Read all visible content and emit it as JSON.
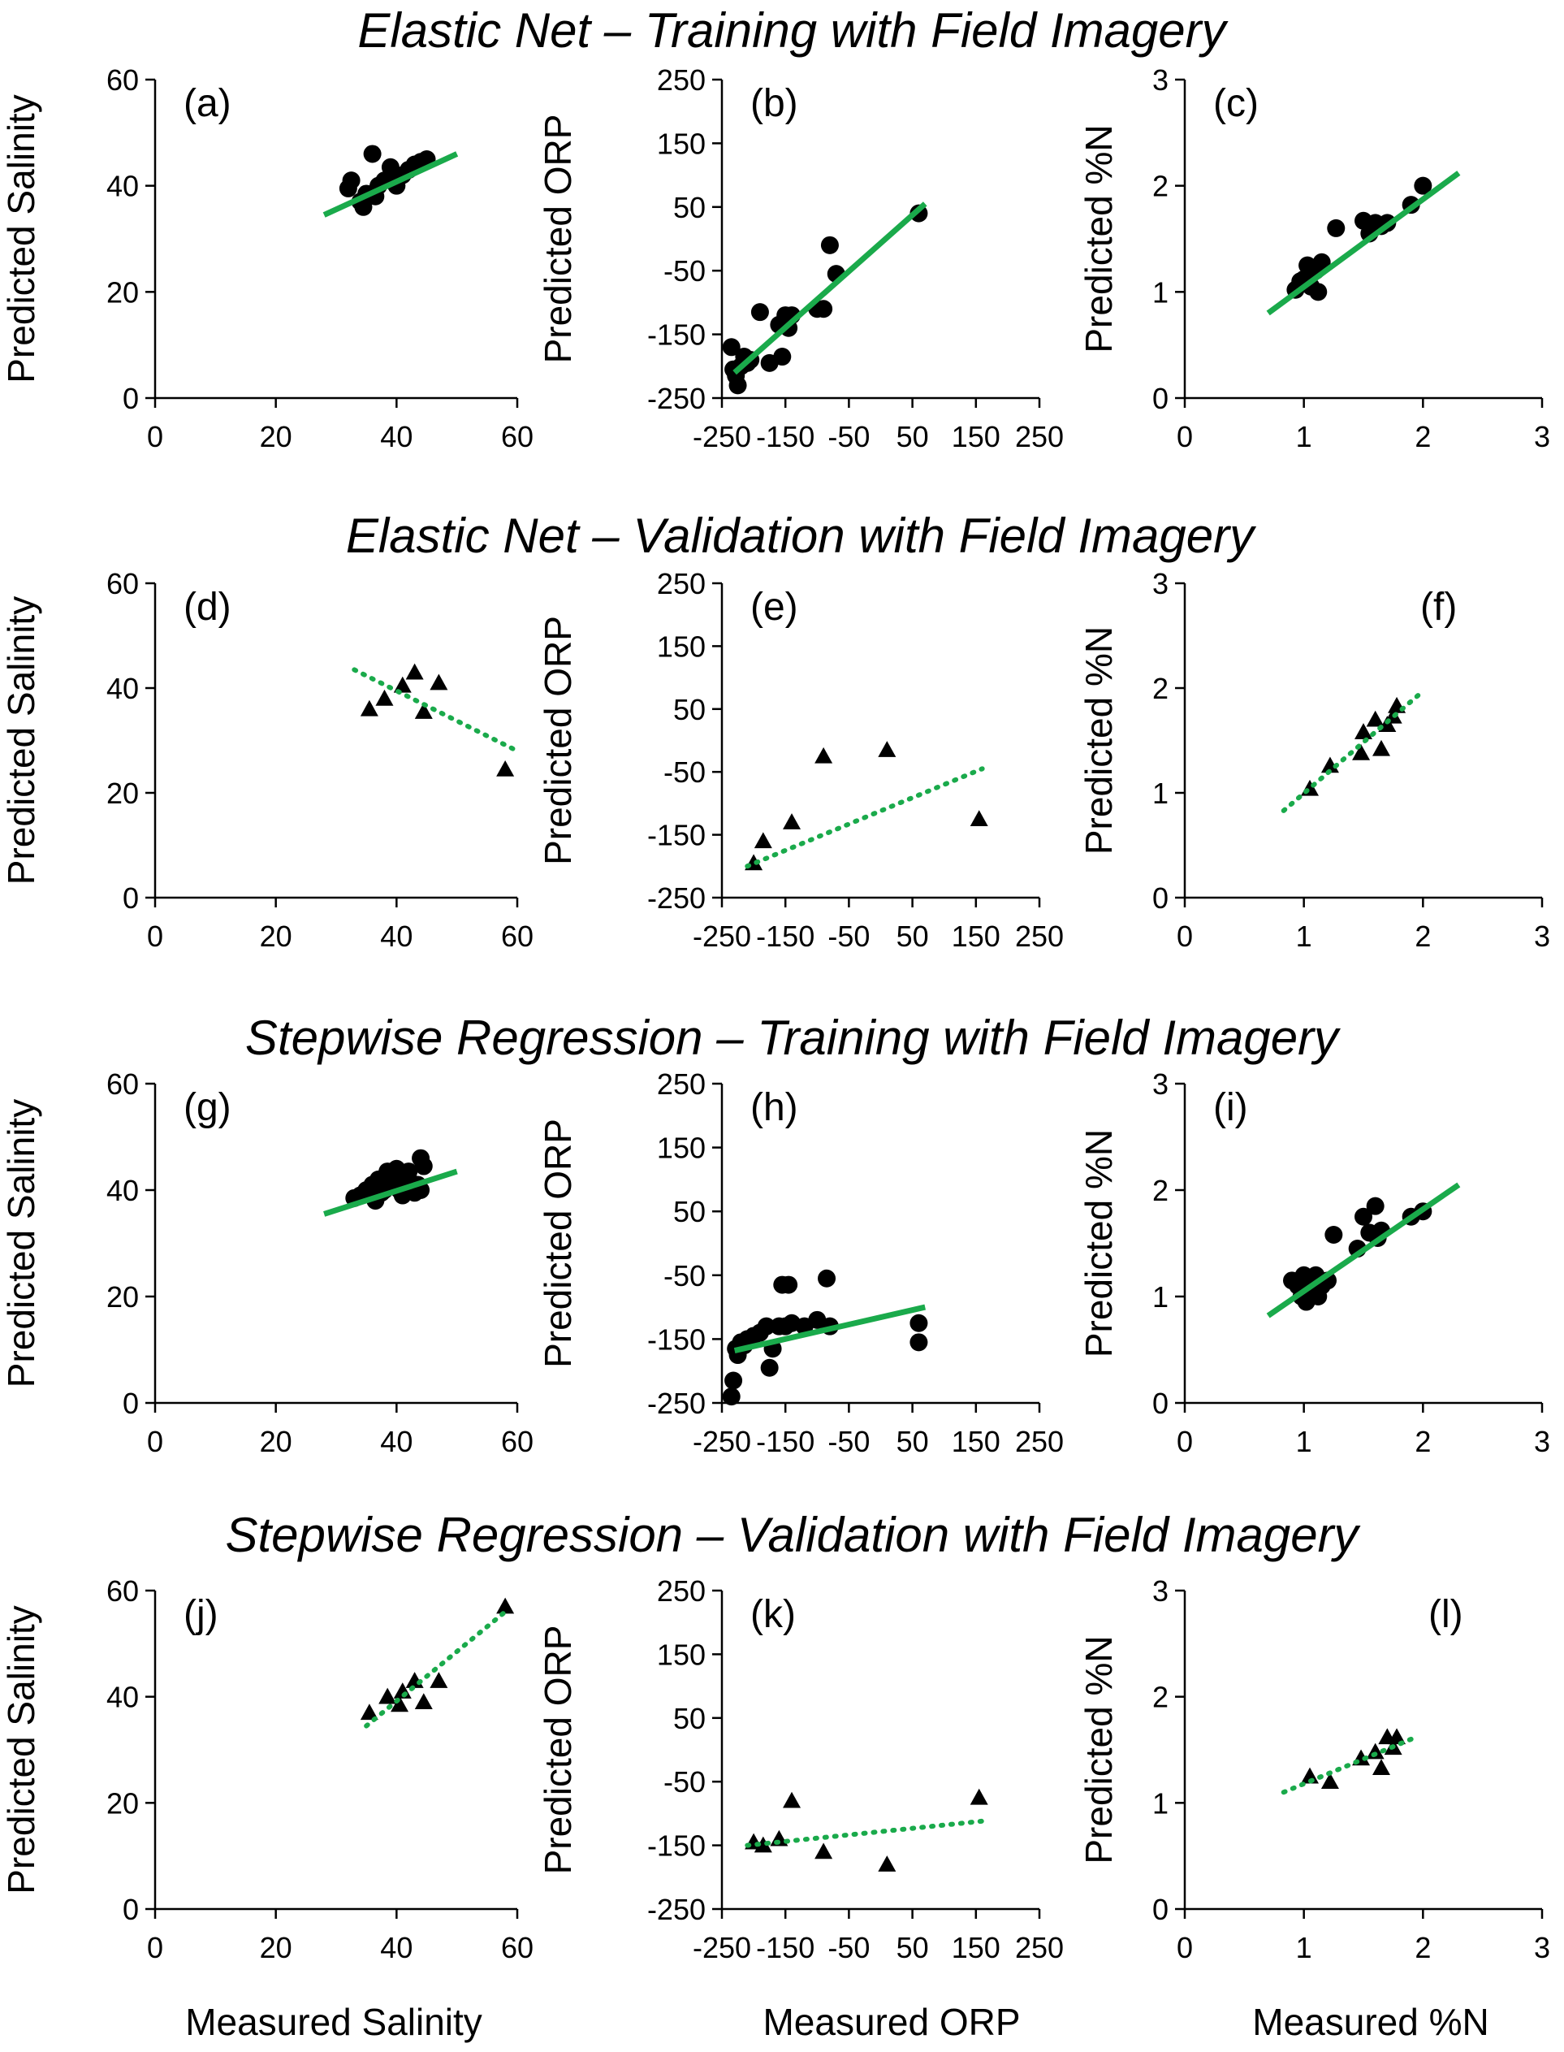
{
  "colors": {
    "fit_line": "#1aaa4b",
    "marker": "#000000",
    "axis": "#000000",
    "background": "#ffffff"
  },
  "chart_data": {
    "type": "scatter",
    "row_titles": [
      "Elastic Net – Training with Field Imagery",
      "Elastic Net – Validation with Field Imagery",
      "Stepwise Regression – Training with Field Imagery",
      "Stepwise Regression – Validation with Field Imagery"
    ],
    "xlabels": [
      "Measured Salinity",
      "Measured ORP",
      "Measured %N"
    ],
    "panels": [
      {
        "label": "(a)",
        "row": 0,
        "col": 0,
        "ylabel": "Predicted Salinity",
        "marker": "circle",
        "xlim": [
          0,
          60
        ],
        "ylim": [
          0,
          60
        ],
        "xticks": [
          0,
          20,
          40,
          60
        ],
        "yticks": [
          0,
          20,
          40,
          60
        ],
        "fit": {
          "style": "solid",
          "x": [
            28,
            50
          ],
          "y": [
            34.5,
            46
          ]
        },
        "points": {
          "x": [
            32,
            32.5,
            34,
            35,
            36,
            37,
            38,
            39,
            40,
            41,
            42,
            43,
            44,
            45,
            34.5,
            36.5,
            39.5
          ],
          "y": [
            39.5,
            41,
            37,
            38.5,
            46,
            40,
            41,
            43.5,
            40,
            42,
            43,
            44,
            44.5,
            45,
            36,
            38,
            41
          ]
        }
      },
      {
        "label": "(b)",
        "row": 0,
        "col": 1,
        "ylabel": "Predicted ORP",
        "marker": "circle",
        "xlim": [
          -250,
          250
        ],
        "ylim": [
          -250,
          250
        ],
        "xticks": [
          -250,
          -150,
          -50,
          50,
          150,
          250
        ],
        "yticks": [
          -250,
          -150,
          -50,
          50,
          150,
          250
        ],
        "fit": {
          "style": "solid",
          "x": [
            -230,
            70
          ],
          "y": [
            -210,
            55
          ]
        },
        "points": {
          "x": [
            -235,
            -232,
            -228,
            -225,
            -220,
            -215,
            -210,
            -205,
            -190,
            -175,
            -160,
            -155,
            -150,
            -145,
            -140,
            -100,
            -90,
            -80,
            -70,
            60
          ],
          "y": [
            -170,
            -205,
            -215,
            -230,
            -200,
            -185,
            -195,
            -190,
            -115,
            -195,
            -135,
            -185,
            -120,
            -140,
            -120,
            -110,
            -110,
            -10,
            -55,
            40
          ]
        }
      },
      {
        "label": "(c)",
        "row": 0,
        "col": 2,
        "ylabel": "Predicted %N",
        "marker": "circle",
        "xlim": [
          0,
          3
        ],
        "ylim": [
          0,
          3
        ],
        "xticks": [
          0,
          1,
          2,
          3
        ],
        "yticks": [
          0,
          1,
          2,
          3
        ],
        "fit": {
          "style": "solid",
          "x": [
            0.7,
            2.3
          ],
          "y": [
            0.8,
            2.12
          ]
        },
        "points": {
          "x": [
            0.93,
            0.97,
            1.0,
            1.03,
            1.06,
            1.1,
            1.12,
            1.15,
            1.27,
            1.5,
            1.55,
            1.6,
            1.65,
            1.7,
            1.9,
            2.0,
            1.05
          ],
          "y": [
            1.02,
            1.1,
            1.12,
            1.25,
            1.05,
            1.2,
            1.0,
            1.28,
            1.6,
            1.67,
            1.55,
            1.65,
            1.62,
            1.65,
            1.82,
            2.0,
            1.15
          ]
        }
      },
      {
        "label": "(d)",
        "row": 1,
        "col": 0,
        "ylabel": "Predicted Salinity",
        "marker": "triangle",
        "xlim": [
          0,
          60
        ],
        "ylim": [
          0,
          60
        ],
        "xticks": [
          0,
          20,
          40,
          60
        ],
        "yticks": [
          0,
          20,
          40,
          60
        ],
        "fit": {
          "style": "dotted",
          "x": [
            33,
            60
          ],
          "y": [
            43.5,
            28
          ]
        },
        "points": {
          "x": [
            35.5,
            38,
            41,
            43,
            44.5,
            47,
            58
          ],
          "y": [
            36,
            38,
            40.5,
            43,
            35.5,
            41,
            24.5
          ]
        }
      },
      {
        "label": "(e)",
        "row": 1,
        "col": 1,
        "ylabel": "Predicted ORP",
        "marker": "triangle",
        "xlim": [
          -250,
          250
        ],
        "ylim": [
          -250,
          250
        ],
        "xticks": [
          -250,
          -150,
          -50,
          50,
          150,
          250
        ],
        "yticks": [
          -250,
          -150,
          -50,
          50,
          150,
          250
        ],
        "fit": {
          "style": "dotted",
          "x": [
            -210,
            160
          ],
          "y": [
            -200,
            -45
          ]
        },
        "points": {
          "x": [
            -200,
            -185,
            -140,
            -90,
            10,
            155
          ],
          "y": [
            -195,
            -160,
            -130,
            -25,
            -15,
            -125
          ]
        }
      },
      {
        "label": "(f)",
        "row": 1,
        "col": 2,
        "ylabel": "Predicted %N",
        "marker": "triangle",
        "xlim": [
          0,
          3
        ],
        "ylim": [
          0,
          3
        ],
        "xticks": [
          0,
          1,
          2,
          3
        ],
        "yticks": [
          0,
          1,
          2,
          3
        ],
        "fit": {
          "style": "dotted",
          "x": [
            0.83,
            2.0
          ],
          "y": [
            0.83,
            1.97
          ]
        },
        "points": {
          "x": [
            1.05,
            1.22,
            1.48,
            1.5,
            1.6,
            1.65,
            1.7,
            1.75,
            1.78
          ],
          "y": [
            1.04,
            1.26,
            1.38,
            1.58,
            1.7,
            1.42,
            1.65,
            1.73,
            1.83
          ]
        }
      },
      {
        "label": "(g)",
        "row": 2,
        "col": 0,
        "ylabel": "Predicted Salinity",
        "marker": "circle",
        "xlim": [
          0,
          60
        ],
        "ylim": [
          0,
          60
        ],
        "xticks": [
          0,
          20,
          40,
          60
        ],
        "yticks": [
          0,
          20,
          40,
          60
        ],
        "fit": {
          "style": "solid",
          "x": [
            28,
            50
          ],
          "y": [
            35.5,
            43.5
          ]
        },
        "points": {
          "x": [
            33,
            34,
            35,
            36,
            36.5,
            37,
            37.5,
            38,
            38.5,
            39,
            39.5,
            40,
            40.5,
            41,
            41.5,
            42,
            42.5,
            43,
            43.5,
            44,
            44.5,
            38,
            40,
            42,
            44
          ],
          "y": [
            38.5,
            39,
            40,
            41,
            38,
            42,
            39.5,
            40.5,
            43.5,
            41,
            42,
            44,
            40,
            39,
            41.5,
            42,
            40.5,
            39.5,
            41,
            46,
            44.5,
            40,
            41.5,
            43.5,
            40
          ]
        }
      },
      {
        "label": "(h)",
        "row": 2,
        "col": 1,
        "ylabel": "Predicted ORP",
        "marker": "circle",
        "xlim": [
          -250,
          250
        ],
        "ylim": [
          -250,
          250
        ],
        "xticks": [
          -250,
          -150,
          -50,
          50,
          150,
          250
        ],
        "yticks": [
          -250,
          -150,
          -50,
          50,
          150,
          250
        ],
        "fit": {
          "style": "solid",
          "x": [
            -230,
            70
          ],
          "y": [
            -168,
            -100
          ]
        },
        "points": {
          "x": [
            -235,
            -232,
            -228,
            -225,
            -220,
            -215,
            -210,
            -200,
            -190,
            -180,
            -175,
            -170,
            -160,
            -155,
            -150,
            -145,
            -140,
            -120,
            -100,
            -85,
            -80,
            60,
            60
          ],
          "y": [
            -240,
            -215,
            -165,
            -175,
            -155,
            -160,
            -150,
            -145,
            -140,
            -130,
            -195,
            -165,
            -130,
            -65,
            -130,
            -65,
            -125,
            -130,
            -120,
            -55,
            -130,
            -125,
            -155
          ]
        }
      },
      {
        "label": "(i)",
        "row": 2,
        "col": 2,
        "ylabel": "Predicted %N",
        "marker": "circle",
        "xlim": [
          0,
          3
        ],
        "ylim": [
          0,
          3
        ],
        "xticks": [
          0,
          1,
          2,
          3
        ],
        "yticks": [
          0,
          1,
          2,
          3
        ],
        "fit": {
          "style": "solid",
          "x": [
            0.7,
            2.3
          ],
          "y": [
            0.82,
            2.05
          ]
        },
        "points": {
          "x": [
            0.9,
            0.95,
            0.98,
            1.0,
            1.02,
            1.05,
            1.08,
            1.1,
            1.12,
            1.15,
            1.2,
            1.25,
            1.45,
            1.5,
            1.55,
            1.6,
            1.62,
            1.65,
            1.9,
            2.0
          ],
          "y": [
            1.15,
            1.1,
            1.0,
            1.2,
            0.95,
            1.15,
            1.05,
            1.2,
            1.0,
            1.1,
            1.15,
            1.58,
            1.45,
            1.75,
            1.6,
            1.85,
            1.55,
            1.62,
            1.75,
            1.8
          ]
        }
      },
      {
        "label": "(j)",
        "row": 3,
        "col": 0,
        "ylabel": "Predicted Salinity",
        "marker": "triangle",
        "xlim": [
          0,
          60
        ],
        "ylim": [
          0,
          60
        ],
        "xticks": [
          0,
          20,
          40,
          60
        ],
        "yticks": [
          0,
          20,
          40,
          60
        ],
        "fit": {
          "style": "dotted",
          "x": [
            35,
            58
          ],
          "y": [
            34.5,
            56
          ]
        },
        "points": {
          "x": [
            35.5,
            38.5,
            40.5,
            41,
            43,
            44.5,
            47,
            58
          ],
          "y": [
            37,
            40,
            38.5,
            41,
            43,
            39,
            43,
            57
          ]
        }
      },
      {
        "label": "(k)",
        "row": 3,
        "col": 1,
        "ylabel": "Predicted ORP",
        "marker": "triangle",
        "xlim": [
          -250,
          250
        ],
        "ylim": [
          -250,
          250
        ],
        "xticks": [
          -250,
          -150,
          -50,
          50,
          150,
          250
        ],
        "yticks": [
          -250,
          -150,
          -50,
          50,
          150,
          250
        ],
        "fit": {
          "style": "dotted",
          "x": [
            -210,
            160
          ],
          "y": [
            -150,
            -112
          ]
        },
        "points": {
          "x": [
            -200,
            -185,
            -160,
            -140,
            -90,
            10,
            155
          ],
          "y": [
            -145,
            -150,
            -140,
            -80,
            -160,
            -180,
            -75
          ]
        }
      },
      {
        "label": "(l)",
        "row": 3,
        "col": 2,
        "ylabel": "Predicted %N",
        "marker": "triangle",
        "xlim": [
          0,
          3
        ],
        "ylim": [
          0,
          3
        ],
        "xticks": [
          0,
          1,
          2,
          3
        ],
        "yticks": [
          0,
          1,
          2,
          3
        ],
        "fit": {
          "style": "dotted",
          "x": [
            0.83,
            1.9
          ],
          "y": [
            1.1,
            1.6
          ]
        },
        "points": {
          "x": [
            1.05,
            1.22,
            1.48,
            1.6,
            1.65,
            1.7,
            1.75,
            1.78
          ],
          "y": [
            1.25,
            1.2,
            1.42,
            1.48,
            1.33,
            1.62,
            1.52,
            1.62
          ]
        }
      }
    ]
  }
}
